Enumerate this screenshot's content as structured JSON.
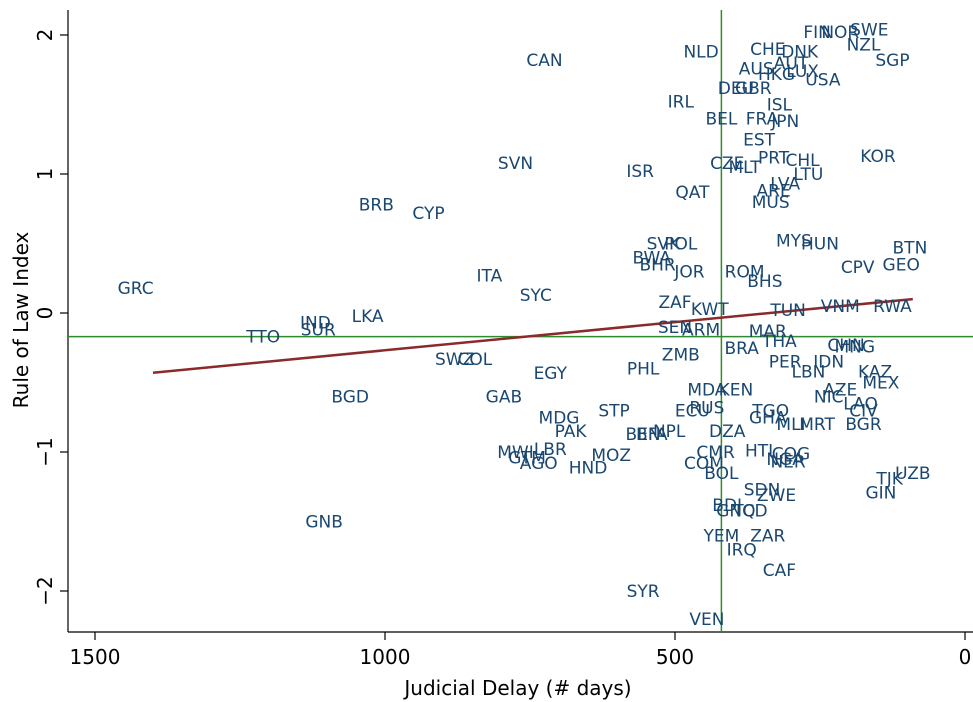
{
  "chart_data": {
    "type": "scatter",
    "title": "",
    "xlabel": "Judicial Delay (# days)",
    "ylabel": "Rule of Law Index",
    "xlim": [
      1500,
      0
    ],
    "ylim": [
      -2.3,
      2.15
    ],
    "x_reversed": true,
    "x_ticks": [
      1500,
      1000,
      500,
      0
    ],
    "y_ticks": [
      2,
      1,
      0,
      -1,
      -2
    ],
    "x_tick_labels": [
      "1500",
      "1000",
      "500",
      "0"
    ],
    "y_tick_labels": [
      "2",
      "1",
      "0",
      "−1",
      "−2"
    ],
    "grid": false,
    "reference_lines": {
      "x": 420,
      "y": -0.17,
      "color": "#2e8b2e"
    },
    "fit_line": {
      "x": [
        1400,
        90
      ],
      "y": [
        -0.43,
        0.1
      ],
      "color": "#8b2a2a"
    },
    "marker_color": "#1a476f",
    "points": [
      {
        "label": "GRC",
        "x": 1430,
        "y": 0.18
      },
      {
        "label": "TTO",
        "x": 1210,
        "y": -0.17
      },
      {
        "label": "IND",
        "x": 1120,
        "y": -0.07
      },
      {
        "label": "SUR",
        "x": 1115,
        "y": -0.12
      },
      {
        "label": "LKA",
        "x": 1030,
        "y": -0.02
      },
      {
        "label": "BGD",
        "x": 1060,
        "y": -0.6
      },
      {
        "label": "GNB",
        "x": 1105,
        "y": -1.5
      },
      {
        "label": "BRB",
        "x": 1015,
        "y": 0.78
      },
      {
        "label": "CYP",
        "x": 925,
        "y": 0.72
      },
      {
        "label": "SWZ",
        "x": 880,
        "y": -0.33
      },
      {
        "label": "COL",
        "x": 845,
        "y": -0.33
      },
      {
        "label": "ITA",
        "x": 820,
        "y": 0.27
      },
      {
        "label": "SVN",
        "x": 775,
        "y": 1.08
      },
      {
        "label": "CAN",
        "x": 725,
        "y": 1.82
      },
      {
        "label": "SYC",
        "x": 740,
        "y": 0.13
      },
      {
        "label": "EGY",
        "x": 715,
        "y": -0.43
      },
      {
        "label": "GAB",
        "x": 795,
        "y": -0.6
      },
      {
        "label": "MDG",
        "x": 700,
        "y": -0.75
      },
      {
        "label": "PAK",
        "x": 680,
        "y": -0.85
      },
      {
        "label": "LBR",
        "x": 715,
        "y": -0.98
      },
      {
        "label": "MWI",
        "x": 775,
        "y": -1.0
      },
      {
        "label": "GTM",
        "x": 755,
        "y": -1.04
      },
      {
        "label": "AGO",
        "x": 735,
        "y": -1.08
      },
      {
        "label": "HND",
        "x": 650,
        "y": -1.11
      },
      {
        "label": "MOZ",
        "x": 610,
        "y": -1.02
      },
      {
        "label": "STP",
        "x": 605,
        "y": -0.7
      },
      {
        "label": "PHL",
        "x": 555,
        "y": -0.4
      },
      {
        "label": "ISR",
        "x": 560,
        "y": 1.02
      },
      {
        "label": "SYR",
        "x": 555,
        "y": -2.0
      },
      {
        "label": "BEN",
        "x": 555,
        "y": -0.87
      },
      {
        "label": "BFA",
        "x": 540,
        "y": -0.87
      },
      {
        "label": "NPL",
        "x": 510,
        "y": -0.85
      },
      {
        "label": "SVK",
        "x": 520,
        "y": 0.5
      },
      {
        "label": "POL",
        "x": 490,
        "y": 0.5
      },
      {
        "label": "BWA",
        "x": 540,
        "y": 0.4
      },
      {
        "label": "BHR",
        "x": 530,
        "y": 0.35
      },
      {
        "label": "ZAF",
        "x": 500,
        "y": 0.08
      },
      {
        "label": "JOR",
        "x": 475,
        "y": 0.3
      },
      {
        "label": "QAT",
        "x": 470,
        "y": 0.87
      },
      {
        "label": "IRL",
        "x": 490,
        "y": 1.52
      },
      {
        "label": "NLD",
        "x": 455,
        "y": 1.88
      },
      {
        "label": "KWT",
        "x": 440,
        "y": 0.03
      },
      {
        "label": "SEN",
        "x": 500,
        "y": -0.1
      },
      {
        "label": "ARM",
        "x": 455,
        "y": -0.12
      },
      {
        "label": "ZMB",
        "x": 490,
        "y": -0.3
      },
      {
        "label": "MDA",
        "x": 445,
        "y": -0.55
      },
      {
        "label": "KEN",
        "x": 395,
        "y": -0.55
      },
      {
        "label": "ECU",
        "x": 470,
        "y": -0.7
      },
      {
        "label": "RUS",
        "x": 445,
        "y": -0.68
      },
      {
        "label": "DZA",
        "x": 410,
        "y": -0.85
      },
      {
        "label": "CMR",
        "x": 430,
        "y": -1.0
      },
      {
        "label": "COM",
        "x": 450,
        "y": -1.08
      },
      {
        "label": "BOL",
        "x": 420,
        "y": -1.15
      },
      {
        "label": "BDI",
        "x": 410,
        "y": -1.38
      },
      {
        "label": "GNQ",
        "x": 395,
        "y": -1.42
      },
      {
        "label": "TCD",
        "x": 370,
        "y": -1.42
      },
      {
        "label": "YEM",
        "x": 420,
        "y": -1.6
      },
      {
        "label": "IRQ",
        "x": 385,
        "y": -1.7
      },
      {
        "label": "ZAR",
        "x": 340,
        "y": -1.6
      },
      {
        "label": "CAF",
        "x": 320,
        "y": -1.85
      },
      {
        "label": "VEN",
        "x": 445,
        "y": -2.2
      },
      {
        "label": "SDN",
        "x": 350,
        "y": -1.27
      },
      {
        "label": "ZWE",
        "x": 325,
        "y": -1.31
      },
      {
        "label": "HTI",
        "x": 355,
        "y": -0.99
      },
      {
        "label": "NGA",
        "x": 310,
        "y": -1.05
      },
      {
        "label": "COG",
        "x": 300,
        "y": -1.01
      },
      {
        "label": "NER",
        "x": 305,
        "y": -1.07
      },
      {
        "label": "TGO",
        "x": 335,
        "y": -0.7
      },
      {
        "label": "GHA",
        "x": 340,
        "y": -0.75
      },
      {
        "label": "MLI",
        "x": 300,
        "y": -0.8
      },
      {
        "label": "MRT",
        "x": 255,
        "y": -0.8
      },
      {
        "label": "NIC",
        "x": 235,
        "y": -0.6
      },
      {
        "label": "AZE",
        "x": 215,
        "y": -0.55
      },
      {
        "label": "LAO",
        "x": 180,
        "y": -0.65
      },
      {
        "label": "BGR",
        "x": 175,
        "y": -0.8
      },
      {
        "label": "CIV",
        "x": 175,
        "y": -0.7
      },
      {
        "label": "KAZ",
        "x": 155,
        "y": -0.42
      },
      {
        "label": "MEX",
        "x": 145,
        "y": -0.5
      },
      {
        "label": "IDN",
        "x": 235,
        "y": -0.35
      },
      {
        "label": "CHN",
        "x": 205,
        "y": -0.23
      },
      {
        "label": "MNG",
        "x": 190,
        "y": -0.24
      },
      {
        "label": "PER",
        "x": 310,
        "y": -0.35
      },
      {
        "label": "LBN",
        "x": 270,
        "y": -0.42
      },
      {
        "label": "THA",
        "x": 320,
        "y": -0.2
      },
      {
        "label": "BRA",
        "x": 385,
        "y": -0.25
      },
      {
        "label": "MAR",
        "x": 340,
        "y": -0.13
      },
      {
        "label": "VNM",
        "x": 215,
        "y": 0.05
      },
      {
        "label": "RWA",
        "x": 125,
        "y": 0.05
      },
      {
        "label": "TUN",
        "x": 305,
        "y": 0.02
      },
      {
        "label": "CPV",
        "x": 185,
        "y": 0.33
      },
      {
        "label": "BTN",
        "x": 95,
        "y": 0.47
      },
      {
        "label": "GEO",
        "x": 110,
        "y": 0.35
      },
      {
        "label": "MYS",
        "x": 295,
        "y": 0.52
      },
      {
        "label": "HUN",
        "x": 250,
        "y": 0.5
      },
      {
        "label": "ROM",
        "x": 380,
        "y": 0.3
      },
      {
        "label": "BHS",
        "x": 345,
        "y": 0.23
      },
      {
        "label": "MUS",
        "x": 335,
        "y": 0.8
      },
      {
        "label": "ARE",
        "x": 330,
        "y": 0.88
      },
      {
        "label": "LVA",
        "x": 310,
        "y": 0.93
      },
      {
        "label": "LTU",
        "x": 270,
        "y": 1.0
      },
      {
        "label": "KOR",
        "x": 150,
        "y": 1.13
      },
      {
        "label": "CHL",
        "x": 280,
        "y": 1.1
      },
      {
        "label": "PRT",
        "x": 330,
        "y": 1.12
      },
      {
        "label": "CZE",
        "x": 410,
        "y": 1.08
      },
      {
        "label": "MLT",
        "x": 380,
        "y": 1.05
      },
      {
        "label": "EST",
        "x": 355,
        "y": 1.25
      },
      {
        "label": "BEL",
        "x": 420,
        "y": 1.4
      },
      {
        "label": "FRA",
        "x": 350,
        "y": 1.4
      },
      {
        "label": "JPN",
        "x": 310,
        "y": 1.38
      },
      {
        "label": "ISL",
        "x": 320,
        "y": 1.5
      },
      {
        "label": "DEU",
        "x": 395,
        "y": 1.62
      },
      {
        "label": "GBR",
        "x": 365,
        "y": 1.62
      },
      {
        "label": "AUS",
        "x": 360,
        "y": 1.76
      },
      {
        "label": "HKG",
        "x": 325,
        "y": 1.72
      },
      {
        "label": "AUT",
        "x": 300,
        "y": 1.8
      },
      {
        "label": "LUX",
        "x": 280,
        "y": 1.74
      },
      {
        "label": "USA",
        "x": 245,
        "y": 1.68
      },
      {
        "label": "CHE",
        "x": 340,
        "y": 1.9
      },
      {
        "label": "DNK",
        "x": 285,
        "y": 1.88
      },
      {
        "label": "FIN",
        "x": 255,
        "y": 2.02
      },
      {
        "label": "NOR",
        "x": 215,
        "y": 2.02
      },
      {
        "label": "SWE",
        "x": 165,
        "y": 2.04
      },
      {
        "label": "NZL",
        "x": 175,
        "y": 1.93
      },
      {
        "label": "SGP",
        "x": 125,
        "y": 1.82
      },
      {
        "label": "UZB",
        "x": 90,
        "y": -1.15
      },
      {
        "label": "TJK",
        "x": 130,
        "y": -1.19
      },
      {
        "label": "GIN",
        "x": 145,
        "y": -1.29
      }
    ]
  }
}
